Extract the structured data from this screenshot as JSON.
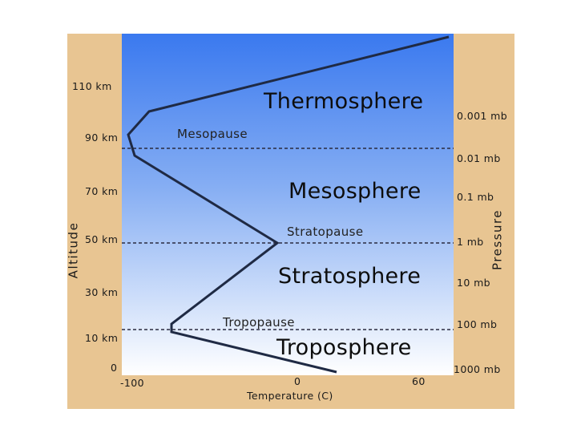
{
  "altitude_axis": {
    "title": "Altitude",
    "ticks": [
      {
        "label": "110 km",
        "km": 110
      },
      {
        "label": "90 km",
        "km": 90
      },
      {
        "label": "70 km",
        "km": 70
      },
      {
        "label": "50 km",
        "km": 50
      },
      {
        "label": "30 km",
        "km": 30
      },
      {
        "label": "10 km",
        "km": 10
      },
      {
        "label": "0",
        "km": 0
      }
    ]
  },
  "pressure_axis": {
    "title": "Pressure",
    "ticks": [
      "0.001 mb",
      "0.01 mb",
      "0.1 mb",
      "1 mb",
      "10 mb",
      "100 mb",
      "1000 mb"
    ]
  },
  "temperature_axis": {
    "title": "Temperature (C)",
    "ticks": [
      {
        "label": "-100",
        "value": -100
      },
      {
        "label": "0",
        "value": 0
      },
      {
        "label": "60",
        "value": 60
      }
    ]
  },
  "layers": [
    "Thermosphere",
    "Mesosphere",
    "Stratosphere",
    "Troposphere"
  ],
  "boundaries": {
    "mesopause": "Mesopause",
    "stratopause": "Stratopause",
    "tropopause": "Tropopause"
  },
  "colors": {
    "frame": "#e8c592",
    "sky_top": "#3d7ef0",
    "sky_bottom": "#ffffff",
    "profile_line": "#1f2a44"
  }
}
